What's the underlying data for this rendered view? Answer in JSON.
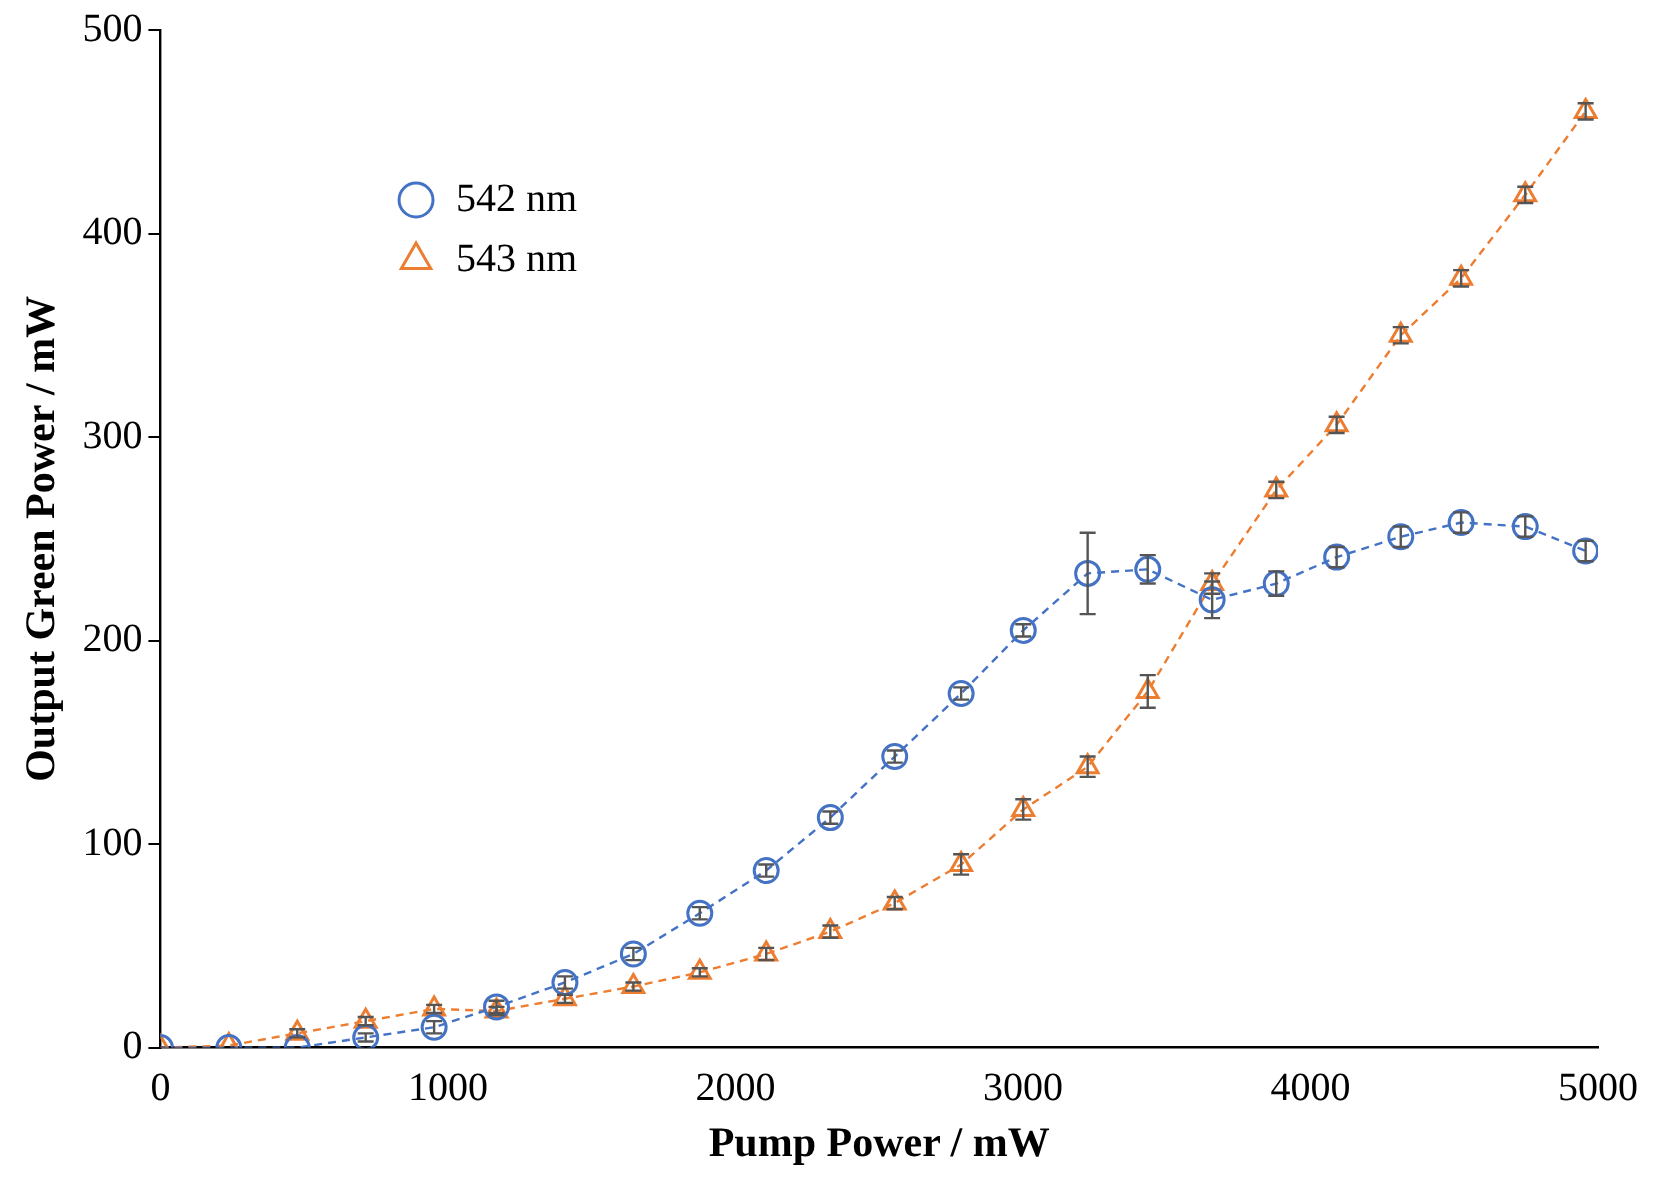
{
  "chart_data": {
    "type": "line",
    "xlabel": "Pump Power / mW",
    "ylabel": "Output Green Power / mW",
    "x": [
      0,
      238,
      476,
      714,
      952,
      1169,
      1407,
      1645,
      1876,
      2107,
      2330,
      2554,
      2785,
      3001,
      3225,
      3434,
      3658,
      3881,
      4091,
      4314,
      4524,
      4747,
      4957
    ],
    "series": [
      {
        "name": "542 nm",
        "color": "#4472c4",
        "marker": "circle",
        "values": [
          0,
          0,
          0,
          5,
          10,
          20,
          32,
          46,
          66,
          87,
          113,
          143,
          174,
          205,
          233,
          235,
          220,
          228,
          241,
          251,
          258,
          256,
          244
        ],
        "errors": [
          null,
          null,
          null,
          2,
          3,
          3,
          3,
          3,
          3,
          3,
          3,
          3,
          3,
          3,
          20,
          7,
          9,
          6,
          5,
          5,
          5,
          5,
          5
        ]
      },
      {
        "name": "543 nm",
        "color": "#ed7d31",
        "marker": "triangle",
        "values": [
          0,
          1,
          7,
          13,
          19,
          18,
          24,
          30,
          37,
          46,
          57,
          71,
          90,
          117,
          138,
          175,
          228,
          274,
          306,
          350,
          378,
          419,
          460
        ],
        "errors": [
          null,
          null,
          2,
          2,
          2,
          2,
          2,
          2,
          2,
          3,
          3,
          3,
          5,
          5,
          5,
          8,
          5,
          4,
          4,
          4,
          4,
          4,
          4
        ]
      }
    ],
    "xlim": [
      0,
      5000
    ],
    "xticks": [
      0,
      1000,
      2000,
      3000,
      4000,
      5000
    ],
    "ylim": [
      0,
      500
    ],
    "yticks": [
      0,
      100,
      200,
      300,
      400,
      500
    ],
    "grid": false,
    "legend": "top left",
    "line_style": "dashed"
  }
}
